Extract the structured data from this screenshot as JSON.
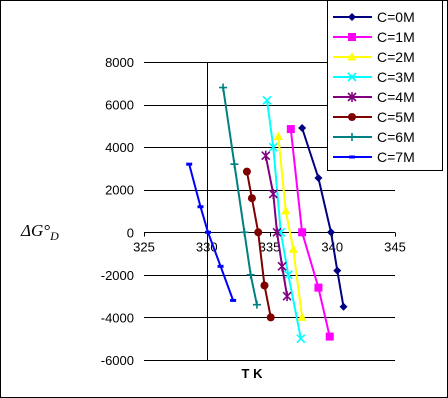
{
  "chart_data": {
    "type": "line",
    "title": "",
    "xlabel": "T K",
    "ylabel": "ΔG°D",
    "xlim": [
      325,
      345
    ],
    "ylim": [
      -6000,
      8000
    ],
    "xticks": [
      325,
      330,
      335,
      340,
      345
    ],
    "yticks": [
      8000,
      6000,
      4000,
      2000,
      0,
      -2000,
      -4000,
      -6000
    ],
    "x_tick_labels": [
      "325",
      "330",
      "335",
      "340",
      "345"
    ],
    "y_tick_labels": [
      "8000",
      "6000",
      "4000",
      "2000",
      "0",
      "-2000",
      "-4000",
      "-6000"
    ],
    "grid": "horizontal",
    "legend_position": "top-right",
    "series": [
      {
        "name": "C=0M",
        "color": "#000080",
        "marker": "diamond",
        "x": [
          337.6,
          338.9,
          339.9,
          340.4,
          340.9
        ],
        "y": [
          4900,
          2550,
          0,
          -1800,
          -3500
        ]
      },
      {
        "name": "C=1M",
        "color": "#FF00FF",
        "marker": "square",
        "x": [
          336.7,
          337.6,
          338.9,
          339.8
        ],
        "y": [
          4850,
          0,
          -2600,
          -4900
        ]
      },
      {
        "name": "C=2M",
        "color": "#FFFF00",
        "marker": "triangle",
        "x": [
          335.7,
          336.3,
          336.9,
          337.6
        ],
        "y": [
          4500,
          1000,
          -800,
          -4000
        ]
      },
      {
        "name": "C=3M",
        "color": "#00FFFF",
        "marker": "x",
        "x": [
          334.8,
          335.3,
          335.9,
          336.5,
          337.5
        ],
        "y": [
          6200,
          4000,
          0,
          -2000,
          -5000
        ]
      },
      {
        "name": "C=4M",
        "color": "#800080",
        "marker": "star",
        "x": [
          334.7,
          335.3,
          335.6,
          336.0,
          336.4
        ],
        "y": [
          3600,
          1800,
          0,
          -1600,
          -3000
        ]
      },
      {
        "name": "C=5M",
        "color": "#800000",
        "marker": "circle",
        "x": [
          333.2,
          333.6,
          334.1,
          334.6,
          335.1
        ],
        "y": [
          2850,
          1600,
          0,
          -2500,
          -4000
        ]
      },
      {
        "name": "C=6M",
        "color": "#008080",
        "marker": "plus",
        "x": [
          331.3,
          332.2,
          333.0,
          333.5,
          334.0
        ],
        "y": [
          6800,
          3200,
          0,
          -2000,
          -3400
        ]
      },
      {
        "name": "C=7M",
        "color": "#0000FF",
        "marker": "dash",
        "x": [
          328.6,
          329.5,
          330.1,
          331.1,
          332.1
        ],
        "y": [
          3200,
          1200,
          0,
          -1600,
          -3200
        ]
      }
    ]
  }
}
